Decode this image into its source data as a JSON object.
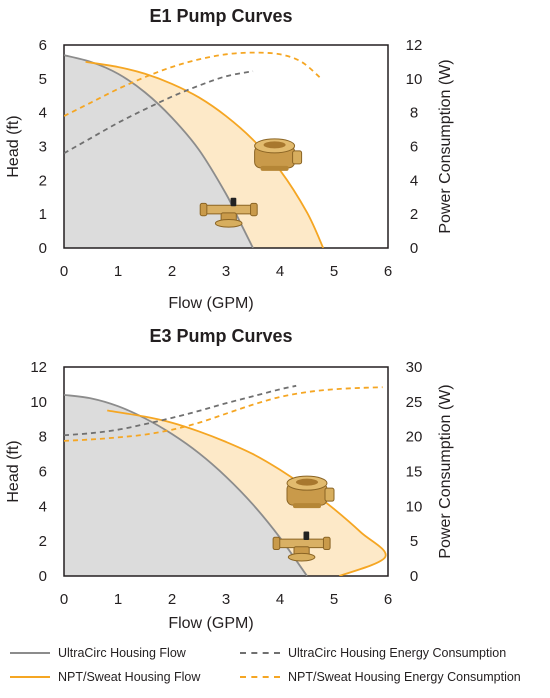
{
  "chart_data": [
    {
      "type": "area",
      "title": "E1 Pump Curves",
      "xlabel": "Flow (GPM)",
      "ylabel": "Head (ft)",
      "y2label": "Power Consumption (W)",
      "xlim": [
        0,
        6
      ],
      "ylim": [
        0,
        6
      ],
      "y2lim": [
        0,
        12
      ],
      "x_ticks": [
        "0",
        "1",
        "2",
        "3",
        "4",
        "5",
        "6"
      ],
      "y_ticks": [
        "0",
        "1",
        "2",
        "3",
        "4",
        "5",
        "6"
      ],
      "y2_ticks": [
        "0",
        "2",
        "4",
        "6",
        "8",
        "10",
        "12"
      ],
      "series": [
        {
          "name": "UltraCirc Housing Flow",
          "axis": "left",
          "style": "solid",
          "color": "#8c8c8c",
          "fill": "#dcdcdc",
          "x": [
            0,
            0.5,
            1,
            1.5,
            2,
            2.5,
            3,
            3.25,
            3.5
          ],
          "y": [
            5.7,
            5.5,
            5.15,
            4.6,
            3.85,
            2.9,
            1.6,
            0.8,
            0
          ]
        },
        {
          "name": "NPT/Sweat Housing Flow",
          "axis": "left",
          "style": "solid",
          "color": "#f5a623",
          "fill": "#fde9c8",
          "x": [
            0.4,
            1,
            1.5,
            2,
            2.5,
            3,
            3.5,
            4,
            4.5,
            4.8
          ],
          "y": [
            5.5,
            5.35,
            5.15,
            4.85,
            4.45,
            3.9,
            3.2,
            2.3,
            1.05,
            0
          ]
        },
        {
          "name": "UltraCirc Housing Energy Consumption",
          "axis": "right",
          "style": "dashed",
          "color": "#707070",
          "x": [
            0,
            0.5,
            1,
            1.5,
            2,
            2.5,
            3,
            3.5
          ],
          "y": [
            5.6,
            6.5,
            7.4,
            8.2,
            8.95,
            9.6,
            10.15,
            10.45
          ]
        },
        {
          "name": "NPT/Sweat Housing Energy Consumption",
          "axis": "right",
          "style": "dashed",
          "color": "#f5a623",
          "x": [
            0,
            0.5,
            1,
            1.5,
            2,
            2.5,
            3,
            3.5,
            4,
            4.4,
            4.75
          ],
          "y": [
            7.8,
            8.6,
            9.4,
            10.1,
            10.7,
            11.15,
            11.45,
            11.55,
            11.45,
            11.0,
            10.05
          ]
        }
      ]
    },
    {
      "type": "area",
      "title": "E3 Pump Curves",
      "xlabel": "Flow (GPM)",
      "ylabel": "Head (ft)",
      "y2label": "Power Consumption (W)",
      "xlim": [
        0,
        6
      ],
      "ylim": [
        0,
        12
      ],
      "y2lim": [
        0,
        30
      ],
      "x_ticks": [
        "0",
        "1",
        "2",
        "3",
        "4",
        "5",
        "6"
      ],
      "y_ticks": [
        "0",
        "2",
        "4",
        "6",
        "8",
        "10",
        "12"
      ],
      "y2_ticks": [
        "0",
        "5",
        "10",
        "15",
        "20",
        "25",
        "30"
      ],
      "series": [
        {
          "name": "UltraCirc Housing Flow",
          "axis": "left",
          "style": "solid",
          "color": "#8c8c8c",
          "fill": "#dcdcdc",
          "x": [
            0,
            0.5,
            1,
            1.5,
            2,
            2.5,
            3,
            3.5,
            4,
            4.5
          ],
          "y": [
            10.4,
            10.2,
            9.75,
            9.05,
            8.15,
            7.05,
            5.7,
            4.1,
            2.2,
            0
          ]
        },
        {
          "name": "NPT/Sweat Housing Flow",
          "axis": "left",
          "style": "solid",
          "color": "#f5a623",
          "fill": "#fde9c8",
          "x": [
            0.8,
            1.5,
            2,
            2.5,
            3,
            3.5,
            4,
            4.5,
            5,
            5.5,
            5.95,
            5.1
          ],
          "y": [
            9.5,
            9.15,
            8.8,
            8.3,
            7.7,
            7.0,
            6.1,
            5.05,
            3.85,
            2.5,
            1.1,
            0
          ]
        },
        {
          "name": "UltraCirc Housing Energy Consumption",
          "axis": "right",
          "style": "dashed",
          "color": "#707070",
          "x": [
            0,
            0.5,
            1,
            1.5,
            2,
            2.5,
            3,
            3.5,
            4,
            4.3
          ],
          "y": [
            20.2,
            20.5,
            21.0,
            21.8,
            22.7,
            23.7,
            24.8,
            25.8,
            26.8,
            27.3
          ]
        },
        {
          "name": "NPT/Sweat Housing Energy Consumption",
          "axis": "right",
          "style": "dashed",
          "color": "#f5a623",
          "x": [
            0,
            0.5,
            1,
            1.5,
            2,
            2.5,
            3,
            3.5,
            4,
            4.5,
            5,
            5.5,
            5.9
          ],
          "y": [
            19.4,
            19.6,
            19.9,
            20.3,
            21.0,
            22.0,
            23.3,
            24.6,
            25.7,
            26.4,
            26.8,
            27.0,
            27.1
          ]
        }
      ]
    }
  ],
  "legend": {
    "items": [
      {
        "label": "UltraCirc Housing Flow",
        "swatch": "solid-gray"
      },
      {
        "label": "UltraCirc Housing Energy Consumption",
        "swatch": "dash-gray"
      },
      {
        "label": "NPT/Sweat Housing Flow",
        "swatch": "solid-orange"
      },
      {
        "label": "NPT/Sweat Housing Energy Consumption",
        "swatch": "dash-orange"
      }
    ]
  }
}
